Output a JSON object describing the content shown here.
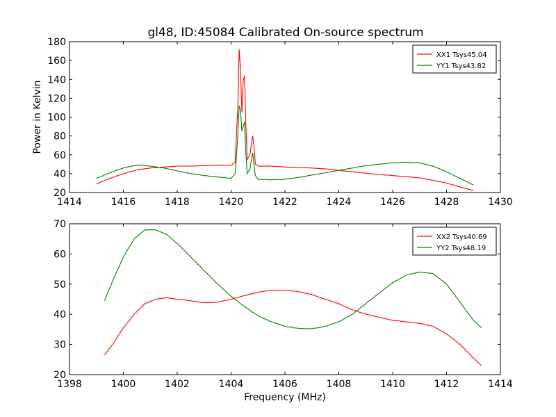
{
  "chart_data": [
    {
      "type": "line",
      "title": "gl48, ID:45084 Calibrated On-source spectrum",
      "xlabel": "",
      "ylabel": "Power in Kelvin",
      "xlim": [
        1414,
        1430
      ],
      "ylim": [
        20,
        180
      ],
      "xticks": [
        "1414",
        "1416",
        "1418",
        "1420",
        "1422",
        "1424",
        "1426",
        "1428",
        "1430"
      ],
      "yticks": [
        "20",
        "40",
        "60",
        "80",
        "100",
        "120",
        "140",
        "160",
        "180"
      ],
      "legend_position": "top-right",
      "grid": false,
      "series": [
        {
          "name": "XX1 Tsys45.04",
          "color": "#ff0000",
          "x": [
            1415.0,
            1415.5,
            1416.0,
            1416.5,
            1417.0,
            1417.5,
            1418.0,
            1418.5,
            1419.0,
            1419.5,
            1420.0,
            1420.15,
            1420.25,
            1420.3,
            1420.35,
            1420.4,
            1420.45,
            1420.5,
            1420.55,
            1420.6,
            1420.7,
            1420.8,
            1420.85,
            1420.9,
            1421.0,
            1421.5,
            1422.0,
            1422.5,
            1423.0,
            1423.5,
            1424.0,
            1424.5,
            1425.0,
            1425.5,
            1426.0,
            1426.5,
            1427.0,
            1427.5,
            1428.0,
            1428.5,
            1429.0
          ],
          "y": [
            29,
            35,
            40,
            44,
            46,
            47,
            48,
            48,
            48.5,
            49,
            49,
            52,
            110,
            172,
            150,
            105,
            138,
            144,
            90,
            55,
            60,
            80,
            70,
            50,
            48,
            48,
            47,
            46.5,
            46,
            45,
            43.5,
            42,
            40.5,
            39,
            38,
            37,
            35.5,
            33,
            30,
            26,
            22
          ]
        },
        {
          "name": "YY1 Tsys43.82",
          "color": "#008000",
          "x": [
            1415.0,
            1415.5,
            1416.0,
            1416.5,
            1417.0,
            1417.5,
            1418.0,
            1418.5,
            1419.0,
            1419.5,
            1420.0,
            1420.15,
            1420.25,
            1420.3,
            1420.35,
            1420.4,
            1420.45,
            1420.5,
            1420.55,
            1420.6,
            1420.7,
            1420.8,
            1420.85,
            1420.9,
            1421.0,
            1421.5,
            1422.0,
            1422.5,
            1423.0,
            1423.5,
            1424.0,
            1424.5,
            1425.0,
            1425.5,
            1426.0,
            1426.5,
            1427.0,
            1427.5,
            1428.0,
            1428.5,
            1429.0
          ],
          "y": [
            35,
            41,
            46,
            49,
            48,
            46,
            43,
            40,
            38,
            36.5,
            35,
            40,
            80,
            112,
            108,
            85,
            90,
            95,
            60,
            40,
            45,
            62,
            50,
            38,
            34,
            33.5,
            34,
            36,
            38.5,
            41,
            43.5,
            46,
            48.5,
            50,
            51.5,
            52,
            51.5,
            48,
            42,
            35,
            28
          ]
        }
      ]
    },
    {
      "type": "line",
      "title": "",
      "xlabel": "Frequency (MHz)",
      "ylabel": "",
      "xlim": [
        1398,
        1414
      ],
      "ylim": [
        20,
        70
      ],
      "xticks": [
        "1398",
        "1400",
        "1402",
        "1404",
        "1406",
        "1408",
        "1410",
        "1412",
        "1414"
      ],
      "yticks": [
        "20",
        "30",
        "40",
        "50",
        "60",
        "70"
      ],
      "legend_position": "top-right",
      "grid": false,
      "series": [
        {
          "name": "XX2 Tsys40.69",
          "color": "#ff0000",
          "x": [
            1399.3,
            1399.6,
            1400.0,
            1400.4,
            1400.8,
            1401.2,
            1401.6,
            1402.0,
            1402.5,
            1403.0,
            1403.5,
            1404.0,
            1404.5,
            1405.0,
            1405.5,
            1406.0,
            1406.5,
            1407.0,
            1407.5,
            1408.0,
            1408.5,
            1409.0,
            1409.5,
            1410.0,
            1410.5,
            1411.0,
            1411.5,
            1412.0,
            1412.5,
            1413.0,
            1413.3
          ],
          "y": [
            26.5,
            30,
            35.5,
            40,
            43.5,
            45,
            45.5,
            45,
            44.5,
            43.8,
            44,
            45,
            46.2,
            47.3,
            48,
            48,
            47.5,
            46.5,
            45,
            43.5,
            41.5,
            40,
            39,
            38,
            37.5,
            37,
            36,
            33.5,
            30,
            25.5,
            23
          ]
        },
        {
          "name": "YY2 Tsys48.19",
          "color": "#008000",
          "x": [
            1399.3,
            1399.6,
            1400.0,
            1400.4,
            1400.8,
            1401.2,
            1401.6,
            1402.0,
            1402.5,
            1403.0,
            1403.5,
            1404.0,
            1404.5,
            1405.0,
            1405.5,
            1406.0,
            1406.5,
            1407.0,
            1407.5,
            1408.0,
            1408.5,
            1409.0,
            1409.5,
            1410.0,
            1410.5,
            1411.0,
            1411.5,
            1412.0,
            1412.5,
            1413.0,
            1413.3
          ],
          "y": [
            44.5,
            51,
            59,
            65,
            68,
            68,
            66.5,
            63.5,
            59,
            54.5,
            50,
            46,
            42.5,
            39.5,
            37.5,
            36,
            35.3,
            35.2,
            36,
            37.5,
            40,
            43.5,
            47,
            50.5,
            53,
            54,
            53.5,
            50,
            44,
            38,
            35.5
          ]
        }
      ]
    }
  ]
}
